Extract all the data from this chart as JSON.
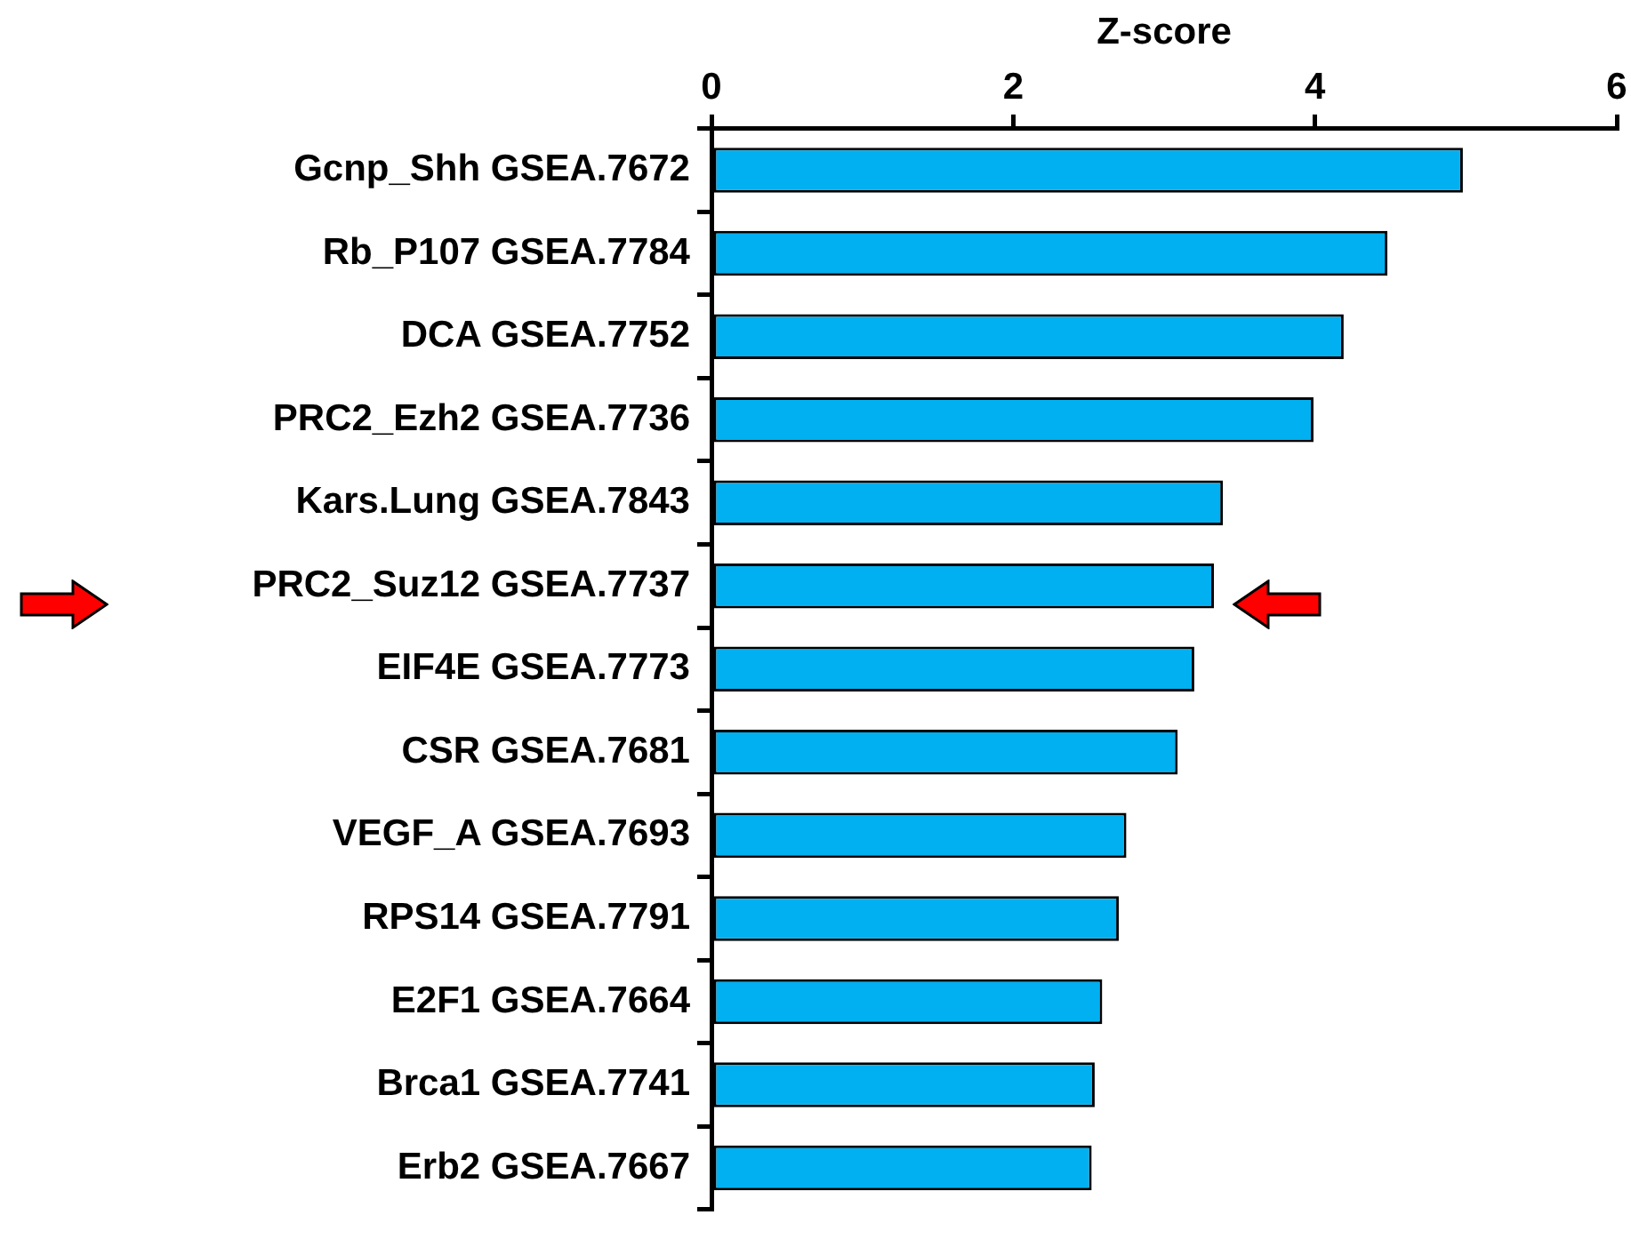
{
  "chart_data": {
    "type": "bar",
    "orientation": "horizontal",
    "xlabel": "Z-score",
    "categories": [
      "Gcnp_Shh GSEA.7672",
      "Rb_P107 GSEA.7784",
      "DCA GSEA.7752",
      "PRC2_Ezh2 GSEA.7736",
      "Kars.Lung GSEA.7843",
      "PRC2_Suz12 GSEA.7737",
      "EIF4E GSEA.7773",
      "CSR GSEA.7681",
      "VEGF_A GSEA.7693",
      "RPS14 GSEA.7791",
      "E2F1 GSEA.7664",
      "Brca1 GSEA.7741",
      "Erb2 GSEA.7667"
    ],
    "values": [
      4.98,
      4.48,
      4.19,
      3.99,
      3.39,
      3.33,
      3.2,
      3.09,
      2.75,
      2.7,
      2.59,
      2.54,
      2.52
    ],
    "color": "#00b0f0",
    "xlim": [
      0,
      6
    ],
    "xticks": [
      0,
      2,
      4,
      6
    ],
    "grid": false,
    "legend": false
  }
}
